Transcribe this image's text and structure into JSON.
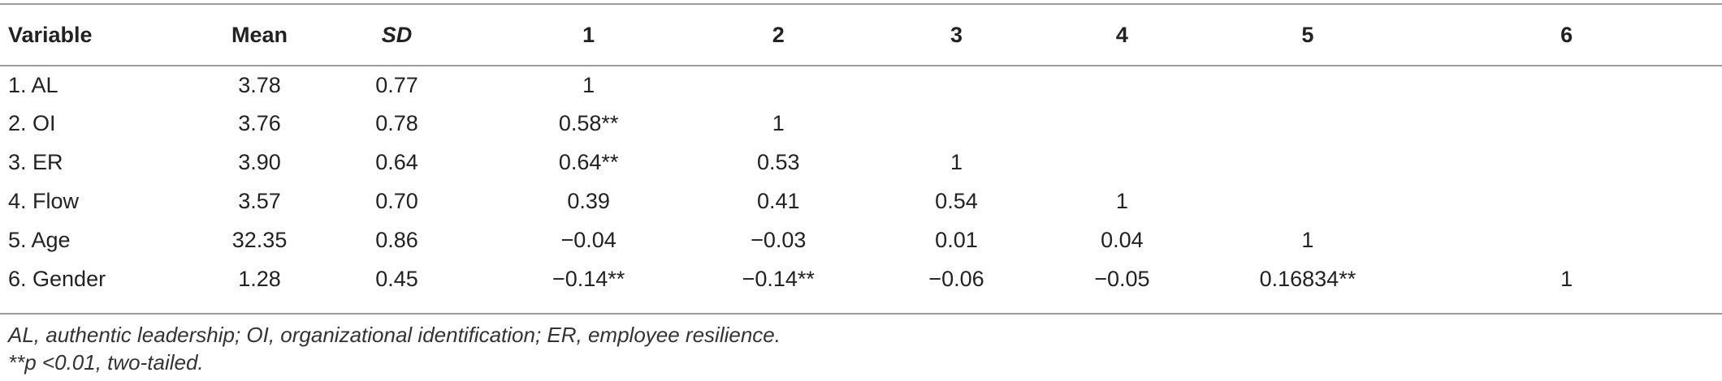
{
  "table": {
    "headers": [
      "Variable",
      "Mean",
      "SD",
      "1",
      "2",
      "3",
      "4",
      "5",
      "6"
    ],
    "rows": [
      [
        "1. AL",
        "3.78",
        "0.77",
        "1",
        "",
        "",
        "",
        "",
        ""
      ],
      [
        "2. OI",
        "3.76",
        "0.78",
        "0.58**",
        "1",
        "",
        "",
        "",
        ""
      ],
      [
        "3. ER",
        "3.90",
        "0.64",
        "0.64**",
        "0.53",
        "1",
        "",
        "",
        ""
      ],
      [
        "4. Flow",
        "3.57",
        "0.70",
        "0.39",
        "0.41",
        "0.54",
        "1",
        "",
        ""
      ],
      [
        "5. Age",
        "32.35",
        "0.86",
        "−0.04",
        "−0.03",
        "0.01",
        "0.04",
        "1",
        ""
      ],
      [
        "6. Gender",
        "1.28",
        "0.45",
        "−0.14**",
        "−0.14**",
        "−0.06",
        "−0.05",
        "0.16834**",
        "1"
      ]
    ]
  },
  "notes": {
    "abbreviations": "AL, authentic leadership; OI, organizational identification; ER, employee resilience.",
    "significance": "**p <0.01, two-tailed."
  }
}
